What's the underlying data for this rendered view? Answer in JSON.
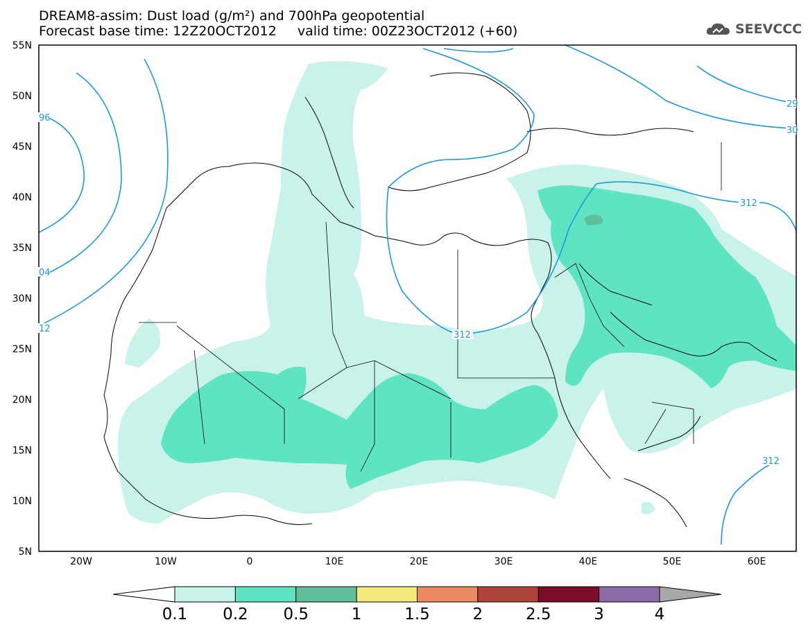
{
  "header": {
    "line1": "DREAM8-assim: Dust load (g/m²) and 700hPa geopotential",
    "line2": "Forecast base time: 12Z20OCT2012     valid time: 00Z23OCT2012 (+60)"
  },
  "logo": {
    "text": "SEEVCCC",
    "icon": "cloud-icon"
  },
  "map": {
    "lat_labels": [
      "55N",
      "50N",
      "45N",
      "40N",
      "35N",
      "30N",
      "25N",
      "20N",
      "15N",
      "10N",
      "5N"
    ],
    "lon_labels": [
      "20W",
      "10W",
      "0",
      "10E",
      "20E",
      "30E",
      "40E",
      "50E",
      "60E"
    ],
    "isoline_labels": [
      "96",
      "04",
      "12",
      "312",
      "312",
      "312",
      "29",
      "30"
    ],
    "colors": {
      "isoline": "#1a9ae0",
      "dust_light": "#c9f3ea",
      "dust_mid": "#5ee4c0",
      "dust_dark": "#3fbf98"
    }
  },
  "colorbar": {
    "labels": [
      "0.1",
      "0.2",
      "0.5",
      "1",
      "1.5",
      "2",
      "2.5",
      "3",
      "4"
    ],
    "colors": [
      "#c9f3ea",
      "#5ee4c0",
      "#5fbf9b",
      "#f3e97a",
      "#ed8a63",
      "#b0443a",
      "#7b0d2a",
      "#8b6aa6"
    ],
    "under_color": "#ffffff",
    "over_color": "#a8a8a8"
  }
}
